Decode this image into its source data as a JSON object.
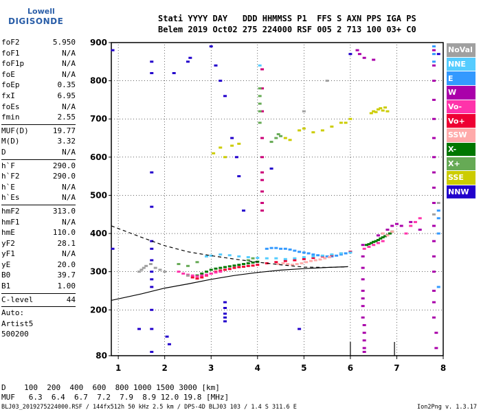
{
  "logo": {
    "lowell": "Lowell",
    "digisonde": "DIGISONDE"
  },
  "header": {
    "line1": "Stati YYYY DAY   DDD HHMMSS P1  FFS S AXN PPS IGA PS",
    "line2": "Belem 2019 Oct02 275 224000 RSF 005 2 713 100 03+ C0"
  },
  "params": [
    {
      "label": "foF2",
      "value": "5.950"
    },
    {
      "label": "foF1",
      "value": "N/A"
    },
    {
      "label": "foF1p",
      "value": "N/A"
    },
    {
      "label": "foE",
      "value": "N/A"
    },
    {
      "label": "foEp",
      "value": "0.35"
    },
    {
      "label": "fxI",
      "value": "6.95"
    },
    {
      "label": "foEs",
      "value": "N/A"
    },
    {
      "label": "fmin",
      "value": "2.55",
      "sep": true
    },
    {
      "label": "MUF(D)",
      "value": "19.77"
    },
    {
      "label": "M(D)",
      "value": "3.32"
    },
    {
      "label": "D",
      "value": "N/A",
      "sep": true
    },
    {
      "label": "h`F",
      "value": "290.0"
    },
    {
      "label": "h`F2",
      "value": "290.0"
    },
    {
      "label": "h`E",
      "value": "N/A"
    },
    {
      "label": "h`Es",
      "value": "N/A",
      "sep": true
    },
    {
      "label": "hmF2",
      "value": "313.0"
    },
    {
      "label": "hmF1",
      "value": "N/A"
    },
    {
      "label": "hmE",
      "value": "110.0"
    },
    {
      "label": "yF2",
      "value": "28.1"
    },
    {
      "label": "yF1",
      "value": "N/A"
    },
    {
      "label": "yE",
      "value": "20.0"
    },
    {
      "label": "B0",
      "value": "39.7"
    },
    {
      "label": "B1",
      "value": "1.00",
      "sep": true
    },
    {
      "label": "C-level",
      "value": "44",
      "sep": true
    },
    {
      "label": "Auto:",
      "value": ""
    },
    {
      "label": "Artist5",
      "value": ""
    },
    {
      "label": "500200",
      "value": ""
    }
  ],
  "legend": [
    {
      "label": "NoVal",
      "color": "#a0a0a0"
    },
    {
      "label": "NNE",
      "color": "#55ccff"
    },
    {
      "label": "E",
      "color": "#3399ff"
    },
    {
      "label": "W",
      "color": "#aa00aa"
    },
    {
      "label": "Vo-",
      "color": "#ff33aa"
    },
    {
      "label": "Vo+",
      "color": "#ee0033"
    },
    {
      "label": "SSW",
      "color": "#ffaaaa"
    },
    {
      "label": "X-",
      "color": "#007700"
    },
    {
      "label": "X+",
      "color": "#66aa55"
    },
    {
      "label": "SSE",
      "color": "#cccc00"
    },
    {
      "label": "NNW",
      "color": "#2200cc"
    }
  ],
  "dm_table": {
    "d_row": "D    100  200  400  600  800 1000 1500 3000 [km]",
    "muf_row": "MUF   6.3  6.4  6.7  7.2  7.9  8.9 12.0 19.8 [MHz]"
  },
  "footer": {
    "info": "BLJ03_2019275224000.RSF / 144fx512h 50 kHz 2.5 km / DPS-4D BLJ03 103 / 1.4 S 311.6 E",
    "version": "Ion2Png v. 1.3.17"
  },
  "chart_data": {
    "type": "scatter",
    "title": "",
    "xlabel": "",
    "ylabel": "",
    "xlim": [
      0.85,
      8.0
    ],
    "ylim": [
      80,
      900
    ],
    "x_ticks": [
      1,
      2,
      3,
      4,
      5,
      6,
      7,
      8
    ],
    "y_ticks": [
      80,
      200,
      300,
      400,
      500,
      600,
      700,
      800,
      900
    ],
    "grid": true,
    "legend_position": "right",
    "vertical_markers": [
      {
        "x": 6.0,
        "color": "#000000"
      },
      {
        "x": 6.95,
        "color": "#000000"
      }
    ],
    "profile_solid": [
      [
        0.85,
        225
      ],
      [
        1.5,
        242
      ],
      [
        2.0,
        257
      ],
      [
        2.5,
        268
      ],
      [
        3.0,
        280
      ],
      [
        3.5,
        290
      ],
      [
        4.0,
        298
      ],
      [
        4.5,
        304
      ],
      [
        5.0,
        308
      ],
      [
        5.5,
        311
      ],
      [
        5.95,
        313
      ]
    ],
    "profile_dashed": [
      [
        0.85,
        420
      ],
      [
        1.5,
        390
      ],
      [
        2.0,
        368
      ],
      [
        2.5,
        352
      ],
      [
        3.0,
        342
      ],
      [
        3.5,
        333
      ],
      [
        4.0,
        325
      ],
      [
        4.5,
        318
      ],
      [
        5.0,
        312
      ],
      [
        5.5,
        311
      ],
      [
        5.95,
        313
      ]
    ],
    "traces": [
      {
        "color": "#2200cc",
        "x": [
          1.72,
          1.72,
          1.72,
          1.72,
          1.72,
          1.72,
          1.72,
          1.72,
          1.72,
          1.72,
          1.72,
          1.72,
          1.72
        ],
        "y": [
          850,
          820,
          560,
          470,
          380,
          360,
          330,
          300,
          280,
          260,
          200,
          150,
          90
        ]
      },
      {
        "color": "#2200cc",
        "x": [
          2.2,
          2.5,
          2.55,
          3.0,
          3.1,
          3.2,
          3.3,
          3.45,
          3.55,
          3.6,
          3.7,
          4.3,
          4.9,
          6.0,
          7.9
        ],
        "y": [
          820,
          850,
          860,
          890,
          840,
          800,
          760,
          650,
          600,
          550,
          460,
          570,
          150,
          870,
          870
        ]
      },
      {
        "color": "#2200cc",
        "x": [
          3.3,
          3.3,
          3.3,
          3.3,
          3.3,
          1.45,
          2.05,
          2.1,
          0.88,
          0.88
        ],
        "y": [
          220,
          205,
          190,
          180,
          170,
          150,
          130,
          110,
          880,
          360
        ]
      },
      {
        "color": "#cc0077",
        "x": [
          4.1,
          4.1,
          4.1,
          4.1,
          4.1,
          4.1,
          4.1,
          4.1,
          4.1,
          4.1
        ],
        "y": [
          830,
          780,
          720,
          650,
          600,
          560,
          540,
          510,
          480,
          460
        ]
      },
      {
        "color": "#aa00aa",
        "x": [
          6.27,
          6.27,
          6.27,
          6.27,
          6.27,
          6.27,
          6.27,
          6.27,
          6.3,
          6.3,
          6.3,
          6.3,
          6.3
        ],
        "y": [
          370,
          340,
          310,
          280,
          250,
          230,
          210,
          180,
          160,
          140,
          120,
          100,
          90
        ]
      },
      {
        "color": "#aa00aa",
        "x": [
          7.8,
          7.8,
          7.8,
          7.8,
          7.8,
          7.8,
          7.8,
          7.8,
          7.8,
          7.8
        ],
        "y": [
          880,
          840,
          800,
          750,
          700,
          650,
          600,
          560,
          520,
          480
        ]
      },
      {
        "color": "#aa00aa",
        "x": [
          7.8,
          7.8,
          7.8,
          7.8,
          7.8,
          7.8,
          7.8,
          7.85,
          7.85
        ],
        "y": [
          420,
          380,
          340,
          300,
          250,
          220,
          180,
          140,
          100
        ]
      },
      {
        "color": "#aa00aa",
        "x": [
          6.15,
          6.2,
          6.3,
          6.5,
          6.6,
          6.7,
          6.8,
          6.9,
          7.0,
          7.1,
          7.3,
          7.5
        ],
        "y": [
          880,
          870,
          860,
          855,
          395,
          400,
          410,
          420,
          425,
          420,
          430,
          410
        ]
      },
      {
        "color": "#3399ff",
        "x": [
          4.2,
          4.3,
          4.4,
          4.5,
          4.6,
          4.7,
          4.8,
          4.9,
          5.0,
          5.1,
          5.2,
          5.3,
          5.4,
          5.5,
          5.6,
          5.7,
          5.8,
          5.9,
          6.0
        ],
        "y": [
          360,
          362,
          362,
          360,
          360,
          358,
          355,
          352,
          350,
          348,
          345,
          343,
          341,
          340,
          340,
          342,
          345,
          348,
          352
        ]
      },
      {
        "color": "#3399ff",
        "x": [
          7.8,
          7.8,
          7.8,
          7.9,
          7.9,
          7.9,
          7.9
        ],
        "y": [
          890,
          870,
          850,
          460,
          440,
          400,
          260
        ]
      },
      {
        "color": "#007700",
        "x": [
          6.35,
          6.4,
          6.45,
          6.5,
          6.55,
          6.6,
          6.65,
          6.7,
          6.75,
          6.8,
          6.85,
          6.9
        ],
        "y": [
          370,
          372,
          375,
          378,
          380,
          383,
          387,
          390,
          393,
          396,
          400,
          405
        ]
      },
      {
        "color": "#007700",
        "x": [
          2.7,
          2.8,
          2.9,
          3.0,
          3.1,
          3.2,
          3.3,
          3.4,
          3.5,
          3.6,
          3.7,
          3.8,
          3.9,
          4.0
        ],
        "y": [
          290,
          295,
          300,
          305,
          308,
          310,
          312,
          314,
          316,
          318,
          320,
          322,
          324,
          326
        ]
      },
      {
        "color": "#ee0033",
        "x": [
          2.5,
          2.6,
          2.7,
          2.8,
          2.9,
          3.0,
          3.1,
          3.2,
          3.3,
          3.4,
          3.5,
          3.6,
          3.7,
          3.8,
          3.9,
          4.0,
          4.2,
          4.4,
          4.6,
          4.8,
          5.0,
          5.2,
          5.4,
          5.6,
          5.8,
          6.0
        ],
        "y": [
          290,
          285,
          282,
          285,
          290,
          295,
          300,
          303,
          305,
          307,
          310,
          312,
          313,
          315,
          316,
          318,
          322,
          325,
          328,
          330,
          333,
          336,
          340,
          343,
          348,
          352
        ]
      },
      {
        "color": "#ff33aa",
        "x": [
          2.3,
          2.4,
          2.5,
          2.6,
          2.7,
          2.8,
          2.9,
          3.0,
          3.1,
          3.2,
          6.3,
          6.4,
          6.5,
          6.6,
          6.7,
          7.2,
          7.3,
          7.4,
          7.5
        ],
        "y": [
          300,
          295,
          292,
          290,
          288,
          290,
          292,
          295,
          298,
          300,
          360,
          365,
          370,
          375,
          380,
          400,
          420,
          430,
          440
        ]
      },
      {
        "color": "#cccc00",
        "x": [
          3.05,
          3.2,
          3.3,
          3.45,
          3.6,
          4.6,
          4.7,
          4.9,
          5.0,
          5.2,
          5.4,
          5.6,
          5.8,
          5.9,
          6.0,
          6.45,
          6.5,
          6.55,
          6.6,
          6.65,
          6.7,
          6.75,
          6.8
        ],
        "y": [
          610,
          625,
          600,
          630,
          635,
          650,
          645,
          670,
          675,
          665,
          670,
          680,
          690,
          690,
          700,
          715,
          720,
          718,
          725,
          728,
          722,
          730,
          720
        ]
      },
      {
        "color": "#66aa55",
        "x": [
          4.05,
          4.05,
          4.05,
          4.05,
          4.05,
          4.3,
          4.4,
          4.45,
          4.5,
          2.3,
          2.5,
          2.7,
          3.8,
          3.9
        ],
        "y": [
          780,
          760,
          740,
          690,
          720,
          640,
          650,
          660,
          655,
          320,
          315,
          325,
          330,
          335
        ]
      },
      {
        "color": "#55ccff",
        "x": [
          2.9,
          3.0,
          3.2,
          3.4,
          3.6,
          3.8,
          4.0,
          4.2,
          4.4,
          4.6,
          4.8,
          5.0,
          5.2,
          5.4,
          5.6,
          5.8,
          6.0,
          4.05
        ],
        "y": [
          340,
          342,
          345,
          343,
          340,
          338,
          336,
          335,
          335,
          333,
          335,
          338,
          340,
          342,
          345,
          348,
          350,
          840
        ]
      },
      {
        "color": "#ffaaaa",
        "x": [
          4.45,
          4.55,
          4.65,
          4.75,
          4.85,
          4.95,
          5.05,
          5.15,
          5.25,
          5.35,
          5.45,
          5.55,
          6.7,
          6.8,
          6.9
        ],
        "y": [
          320,
          322,
          320,
          318,
          320,
          322,
          325,
          328,
          330,
          332,
          335,
          338,
          400,
          395,
          405
        ]
      },
      {
        "color": "#a0a0a0",
        "x": [
          1.45,
          1.5,
          1.55,
          1.6,
          1.7,
          1.8,
          1.9,
          2.0,
          2.5,
          5.0,
          5.5,
          7.8,
          7.9
        ],
        "y": [
          300,
          305,
          310,
          315,
          320,
          310,
          305,
          300,
          290,
          720,
          800,
          450,
          480
        ]
      }
    ]
  }
}
